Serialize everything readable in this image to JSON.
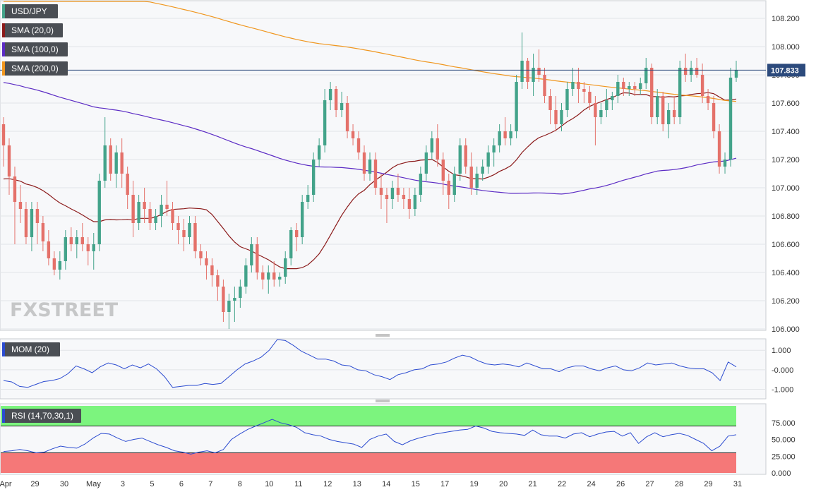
{
  "chart_data": [
    {
      "type": "candlestick",
      "symbol": "USD/JPY",
      "colors": {
        "up": "#43a38a",
        "down": "#e4716a",
        "background": "#f7f8fa",
        "grid": "#e2e4e8",
        "price_line": "#2c4a7c"
      },
      "ylim": [
        106.0,
        108.3
      ],
      "y_ticks": [
        "108.200",
        "108.000",
        "107.800",
        "107.600",
        "107.400",
        "107.200",
        "107.000",
        "106.800",
        "106.600",
        "106.400",
        "106.200",
        "106.000"
      ],
      "last_price": "107.833",
      "indicators": [
        {
          "name": "SMA (20,0)",
          "color": "#8b1a1a"
        },
        {
          "name": "SMA (100,0)",
          "color": "#5b2bc4"
        },
        {
          "name": "SMA (200,0)",
          "color": "#f0961e"
        }
      ],
      "candles": [
        {
          "o": 107.45,
          "h": 107.5,
          "l": 107.15,
          "c": 107.3
        },
        {
          "o": 107.3,
          "h": 107.35,
          "l": 106.95,
          "c": 107.08
        },
        {
          "o": 107.08,
          "h": 107.15,
          "l": 106.6,
          "c": 106.9
        },
        {
          "o": 106.9,
          "h": 107.02,
          "l": 106.75,
          "c": 106.85
        },
        {
          "o": 106.85,
          "h": 106.9,
          "l": 106.6,
          "c": 106.65
        },
        {
          "o": 106.65,
          "h": 106.9,
          "l": 106.55,
          "c": 106.85
        },
        {
          "o": 106.85,
          "h": 106.9,
          "l": 106.6,
          "c": 106.75
        },
        {
          "o": 106.75,
          "h": 106.8,
          "l": 106.55,
          "c": 106.62
        },
        {
          "o": 106.62,
          "h": 106.7,
          "l": 106.45,
          "c": 106.5
        },
        {
          "o": 106.5,
          "h": 106.55,
          "l": 106.38,
          "c": 106.42
        },
        {
          "o": 106.42,
          "h": 106.55,
          "l": 106.35,
          "c": 106.48
        },
        {
          "o": 106.48,
          "h": 106.7,
          "l": 106.42,
          "c": 106.65
        },
        {
          "o": 106.65,
          "h": 106.72,
          "l": 106.55,
          "c": 106.6
        },
        {
          "o": 106.6,
          "h": 106.7,
          "l": 106.5,
          "c": 106.65
        },
        {
          "o": 106.65,
          "h": 106.75,
          "l": 106.55,
          "c": 106.6
        },
        {
          "o": 106.6,
          "h": 106.65,
          "l": 106.45,
          "c": 106.55
        },
        {
          "o": 106.55,
          "h": 106.68,
          "l": 106.42,
          "c": 106.6
        },
        {
          "o": 106.6,
          "h": 107.1,
          "l": 106.55,
          "c": 107.05
        },
        {
          "o": 107.05,
          "h": 107.5,
          "l": 107.0,
          "c": 107.3
        },
        {
          "o": 107.3,
          "h": 107.35,
          "l": 107.05,
          "c": 107.1
        },
        {
          "o": 107.1,
          "h": 107.3,
          "l": 107.0,
          "c": 107.25
        },
        {
          "o": 107.25,
          "h": 107.35,
          "l": 107.0,
          "c": 107.1
        },
        {
          "o": 107.1,
          "h": 107.15,
          "l": 106.85,
          "c": 106.95
        },
        {
          "o": 106.95,
          "h": 107.05,
          "l": 106.65,
          "c": 106.75
        },
        {
          "o": 106.75,
          "h": 106.95,
          "l": 106.7,
          "c": 106.9
        },
        {
          "o": 106.9,
          "h": 107.0,
          "l": 106.75,
          "c": 106.85
        },
        {
          "o": 106.85,
          "h": 106.9,
          "l": 106.7,
          "c": 106.75
        },
        {
          "o": 106.75,
          "h": 106.85,
          "l": 106.7,
          "c": 106.8
        },
        {
          "o": 106.8,
          "h": 106.95,
          "l": 106.72,
          "c": 106.88
        },
        {
          "o": 106.88,
          "h": 107.05,
          "l": 106.8,
          "c": 106.85
        },
        {
          "o": 106.85,
          "h": 106.9,
          "l": 106.7,
          "c": 106.75
        },
        {
          "o": 106.75,
          "h": 106.8,
          "l": 106.6,
          "c": 106.7
        },
        {
          "o": 106.7,
          "h": 106.78,
          "l": 106.55,
          "c": 106.65
        },
        {
          "o": 106.65,
          "h": 106.8,
          "l": 106.6,
          "c": 106.75
        },
        {
          "o": 106.75,
          "h": 106.8,
          "l": 106.5,
          "c": 106.55
        },
        {
          "o": 106.55,
          "h": 106.6,
          "l": 106.45,
          "c": 106.5
        },
        {
          "o": 106.5,
          "h": 106.55,
          "l": 106.35,
          "c": 106.45
        },
        {
          "o": 106.45,
          "h": 106.5,
          "l": 106.3,
          "c": 106.38
        },
        {
          "o": 106.38,
          "h": 106.42,
          "l": 106.2,
          "c": 106.3
        },
        {
          "o": 106.3,
          "h": 106.35,
          "l": 106.05,
          "c": 106.12
        },
        {
          "o": 106.12,
          "h": 106.25,
          "l": 106.0,
          "c": 106.2
        },
        {
          "o": 106.2,
          "h": 106.3,
          "l": 106.05,
          "c": 106.22
        },
        {
          "o": 106.22,
          "h": 106.35,
          "l": 106.15,
          "c": 106.3
        },
        {
          "o": 106.3,
          "h": 106.5,
          "l": 106.25,
          "c": 106.45
        },
        {
          "o": 106.45,
          "h": 106.65,
          "l": 106.4,
          "c": 106.6
        },
        {
          "o": 106.6,
          "h": 106.65,
          "l": 106.35,
          "c": 106.4
        },
        {
          "o": 106.4,
          "h": 106.45,
          "l": 106.28,
          "c": 106.35
        },
        {
          "o": 106.35,
          "h": 106.45,
          "l": 106.25,
          "c": 106.4
        },
        {
          "o": 106.4,
          "h": 106.48,
          "l": 106.3,
          "c": 106.35
        },
        {
          "o": 106.35,
          "h": 106.4,
          "l": 106.3,
          "c": 106.37
        },
        {
          "o": 106.37,
          "h": 106.55,
          "l": 106.32,
          "c": 106.5
        },
        {
          "o": 106.5,
          "h": 106.72,
          "l": 106.45,
          "c": 106.7
        },
        {
          "o": 106.7,
          "h": 106.75,
          "l": 106.55,
          "c": 106.65
        },
        {
          "o": 106.65,
          "h": 106.95,
          "l": 106.6,
          "c": 106.9
        },
        {
          "o": 106.9,
          "h": 107.02,
          "l": 106.85,
          "c": 106.95
        },
        {
          "o": 106.95,
          "h": 107.25,
          "l": 106.9,
          "c": 107.2
        },
        {
          "o": 107.2,
          "h": 107.35,
          "l": 107.15,
          "c": 107.3
        },
        {
          "o": 107.3,
          "h": 107.7,
          "l": 107.25,
          "c": 107.62
        },
        {
          "o": 107.62,
          "h": 107.75,
          "l": 107.55,
          "c": 107.7
        },
        {
          "o": 107.7,
          "h": 107.72,
          "l": 107.5,
          "c": 107.55
        },
        {
          "o": 107.55,
          "h": 107.68,
          "l": 107.5,
          "c": 107.6
        },
        {
          "o": 107.6,
          "h": 107.65,
          "l": 107.35,
          "c": 107.4
        },
        {
          "o": 107.4,
          "h": 107.45,
          "l": 107.3,
          "c": 107.35
        },
        {
          "o": 107.35,
          "h": 107.4,
          "l": 107.2,
          "c": 107.25
        },
        {
          "o": 107.25,
          "h": 107.3,
          "l": 107.05,
          "c": 107.1
        },
        {
          "o": 107.1,
          "h": 107.25,
          "l": 107.05,
          "c": 107.2
        },
        {
          "o": 107.2,
          "h": 107.25,
          "l": 106.95,
          "c": 107.0
        },
        {
          "o": 107.0,
          "h": 107.1,
          "l": 106.85,
          "c": 106.95
        },
        {
          "o": 106.95,
          "h": 107.0,
          "l": 106.75,
          "c": 106.92
        },
        {
          "o": 106.92,
          "h": 107.05,
          "l": 106.85,
          "c": 107.0
        },
        {
          "o": 107.0,
          "h": 107.1,
          "l": 106.9,
          "c": 106.95
        },
        {
          "o": 106.95,
          "h": 107.0,
          "l": 106.85,
          "c": 106.92
        },
        {
          "o": 106.92,
          "h": 107.0,
          "l": 106.78,
          "c": 106.85
        },
        {
          "o": 106.85,
          "h": 107.0,
          "l": 106.8,
          "c": 106.95
        },
        {
          "o": 106.95,
          "h": 107.15,
          "l": 106.9,
          "c": 107.1
        },
        {
          "o": 107.1,
          "h": 107.3,
          "l": 107.05,
          "c": 107.25
        },
        {
          "o": 107.25,
          "h": 107.4,
          "l": 107.2,
          "c": 107.35
        },
        {
          "o": 107.35,
          "h": 107.45,
          "l": 107.15,
          "c": 107.2
        },
        {
          "o": 107.2,
          "h": 107.25,
          "l": 106.95,
          "c": 107.05
        },
        {
          "o": 107.05,
          "h": 107.1,
          "l": 106.85,
          "c": 106.95
        },
        {
          "o": 106.95,
          "h": 107.15,
          "l": 106.9,
          "c": 107.1
        },
        {
          "o": 107.1,
          "h": 107.35,
          "l": 107.05,
          "c": 107.3
        },
        {
          "o": 107.3,
          "h": 107.35,
          "l": 107.1,
          "c": 107.15
        },
        {
          "o": 107.15,
          "h": 107.25,
          "l": 106.95,
          "c": 107.0
        },
        {
          "o": 107.0,
          "h": 107.15,
          "l": 106.95,
          "c": 107.1
        },
        {
          "o": 107.1,
          "h": 107.2,
          "l": 107.05,
          "c": 107.15
        },
        {
          "o": 107.15,
          "h": 107.3,
          "l": 107.1,
          "c": 107.25
        },
        {
          "o": 107.25,
          "h": 107.35,
          "l": 107.15,
          "c": 107.3
        },
        {
          "o": 107.3,
          "h": 107.45,
          "l": 107.25,
          "c": 107.4
        },
        {
          "o": 107.4,
          "h": 107.5,
          "l": 107.3,
          "c": 107.35
        },
        {
          "o": 107.35,
          "h": 107.45,
          "l": 107.3,
          "c": 107.4
        },
        {
          "o": 107.4,
          "h": 107.8,
          "l": 107.35,
          "c": 107.75
        },
        {
          "o": 107.75,
          "h": 108.1,
          "l": 107.7,
          "c": 107.9
        },
        {
          "o": 107.9,
          "h": 107.92,
          "l": 107.7,
          "c": 107.75
        },
        {
          "o": 107.75,
          "h": 107.95,
          "l": 107.65,
          "c": 107.85
        },
        {
          "o": 107.85,
          "h": 107.98,
          "l": 107.75,
          "c": 107.8
        },
        {
          "o": 107.8,
          "h": 107.85,
          "l": 107.6,
          "c": 107.65
        },
        {
          "o": 107.65,
          "h": 107.7,
          "l": 107.45,
          "c": 107.55
        },
        {
          "o": 107.55,
          "h": 107.65,
          "l": 107.4,
          "c": 107.45
        },
        {
          "o": 107.45,
          "h": 107.6,
          "l": 107.4,
          "c": 107.55
        },
        {
          "o": 107.55,
          "h": 107.75,
          "l": 107.5,
          "c": 107.7
        },
        {
          "o": 107.7,
          "h": 107.85,
          "l": 107.65,
          "c": 107.75
        },
        {
          "o": 107.75,
          "h": 107.85,
          "l": 107.6,
          "c": 107.7
        },
        {
          "o": 107.7,
          "h": 107.75,
          "l": 107.6,
          "c": 107.68
        },
        {
          "o": 107.68,
          "h": 107.72,
          "l": 107.55,
          "c": 107.6
        },
        {
          "o": 107.6,
          "h": 107.65,
          "l": 107.3,
          "c": 107.5
        },
        {
          "o": 107.5,
          "h": 107.6,
          "l": 107.45,
          "c": 107.55
        },
        {
          "o": 107.55,
          "h": 107.7,
          "l": 107.5,
          "c": 107.62
        },
        {
          "o": 107.62,
          "h": 107.68,
          "l": 107.55,
          "c": 107.65
        },
        {
          "o": 107.65,
          "h": 107.8,
          "l": 107.6,
          "c": 107.75
        },
        {
          "o": 107.75,
          "h": 107.78,
          "l": 107.65,
          "c": 107.7
        },
        {
          "o": 107.7,
          "h": 107.75,
          "l": 107.65,
          "c": 107.72
        },
        {
          "o": 107.72,
          "h": 107.75,
          "l": 107.65,
          "c": 107.7
        },
        {
          "o": 107.7,
          "h": 107.78,
          "l": 107.66,
          "c": 107.74
        },
        {
          "o": 107.74,
          "h": 107.92,
          "l": 107.7,
          "c": 107.85
        },
        {
          "o": 107.85,
          "h": 107.88,
          "l": 107.45,
          "c": 107.5
        },
        {
          "o": 107.5,
          "h": 107.7,
          "l": 107.45,
          "c": 107.65
        },
        {
          "o": 107.65,
          "h": 107.68,
          "l": 107.4,
          "c": 107.45
        },
        {
          "o": 107.45,
          "h": 107.6,
          "l": 107.35,
          "c": 107.55
        },
        {
          "o": 107.55,
          "h": 107.65,
          "l": 107.45,
          "c": 107.5
        },
        {
          "o": 107.5,
          "h": 107.9,
          "l": 107.45,
          "c": 107.85
        },
        {
          "o": 107.85,
          "h": 107.95,
          "l": 107.75,
          "c": 107.8
        },
        {
          "o": 107.8,
          "h": 107.9,
          "l": 107.75,
          "c": 107.85
        },
        {
          "o": 107.85,
          "h": 107.92,
          "l": 107.78,
          "c": 107.8
        },
        {
          "o": 107.8,
          "h": 107.88,
          "l": 107.6,
          "c": 107.65
        },
        {
          "o": 107.65,
          "h": 107.7,
          "l": 107.55,
          "c": 107.6
        },
        {
          "o": 107.6,
          "h": 107.65,
          "l": 107.35,
          "c": 107.4
        },
        {
          "o": 107.4,
          "h": 107.45,
          "l": 107.1,
          "c": 107.15
        },
        {
          "o": 107.15,
          "h": 107.25,
          "l": 107.1,
          "c": 107.2
        },
        {
          "o": 107.2,
          "h": 107.85,
          "l": 107.15,
          "c": 107.78
        },
        {
          "o": 107.78,
          "h": 107.9,
          "l": 107.75,
          "c": 107.833
        }
      ]
    },
    {
      "type": "line",
      "name": "MOM (20)",
      "color": "#2b4bd0",
      "ylim": [
        -1.45,
        1.55
      ],
      "y_ticks": [
        "1.000",
        "-0.000",
        "-1.000"
      ],
      "values": [
        -0.55,
        -0.62,
        -0.85,
        -0.9,
        -0.75,
        -0.6,
        -0.55,
        -0.45,
        -0.2,
        0.2,
        0.05,
        -0.15,
        0.15,
        0.35,
        0.25,
        0.05,
        0.25,
        0.1,
        0.3,
        0.05,
        -0.35,
        -0.9,
        -0.85,
        -0.8,
        -0.8,
        -0.7,
        -0.75,
        -0.7,
        -0.35,
        0.0,
        0.3,
        0.45,
        0.65,
        1.0,
        1.55,
        1.5,
        1.25,
        0.95,
        0.75,
        0.55,
        0.55,
        0.45,
        0.25,
        0.2,
        0.0,
        -0.05,
        -0.25,
        -0.35,
        -0.5,
        -0.25,
        -0.15,
        0.0,
        0.05,
        0.25,
        0.3,
        0.4,
        0.6,
        0.75,
        0.65,
        0.45,
        0.3,
        0.25,
        0.3,
        0.25,
        0.15,
        0.35,
        0.2,
        0.05,
        0.05,
        -0.1,
        0.1,
        0.2,
        0.2,
        0.05,
        -0.05,
        0.1,
        0.2,
        0.0,
        -0.05,
        0.1,
        0.35,
        0.25,
        0.3,
        0.35,
        0.2,
        0.1,
        0.05,
        0.05,
        -0.15,
        -0.55,
        0.4,
        0.15
      ]
    },
    {
      "type": "line",
      "name": "RSI (14,70,30,1)",
      "color": "#2b4bd0",
      "ylim": [
        0,
        100
      ],
      "y_ticks": [
        "75.000",
        "50.000",
        "25.000",
        "0.000"
      ],
      "overbought": 70,
      "oversold": 30,
      "overbought_color": "#7cf47e",
      "oversold_color": "#f57878",
      "values": [
        32,
        33,
        35,
        33,
        30,
        31,
        36,
        40,
        38,
        37,
        43,
        52,
        59,
        58,
        52,
        47,
        50,
        52,
        47,
        42,
        38,
        33,
        31,
        28,
        31,
        33,
        30,
        35,
        50,
        58,
        65,
        70,
        75,
        80,
        75,
        72,
        68,
        60,
        57,
        55,
        50,
        47,
        45,
        43,
        38,
        50,
        55,
        58,
        47,
        42,
        48,
        52,
        55,
        58,
        60,
        62,
        64,
        65,
        70,
        67,
        62,
        60,
        59,
        58,
        56,
        64,
        57,
        55,
        55,
        52,
        58,
        60,
        54,
        58,
        61,
        62,
        55,
        60,
        44,
        54,
        60,
        54,
        57,
        59,
        56,
        50,
        44,
        33,
        40,
        55,
        57
      ]
    }
  ],
  "x_axis": {
    "labels": [
      "Apr",
      "29",
      "30",
      "May",
      "3",
      "5",
      "6",
      "7",
      "8",
      "10",
      "11",
      "12",
      "13",
      "14",
      "15",
      "17",
      "19",
      "20",
      "21",
      "22",
      "24",
      "26",
      "27",
      "28",
      "29",
      "31"
    ]
  },
  "watermark": "FXSTREET"
}
